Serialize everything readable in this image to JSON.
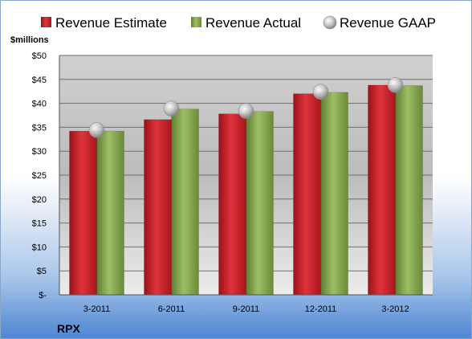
{
  "chart_data": {
    "type": "bar",
    "title": "",
    "ylabel": "$millions",
    "footer": "RPX",
    "categories": [
      "3-2011",
      "6-2011",
      "9-2011",
      "12-2011",
      "3-2012"
    ],
    "series": [
      {
        "name": "Revenue Estimate",
        "kind": "bar",
        "color": "#c8202a",
        "values": [
          34.2,
          36.6,
          37.8,
          42.0,
          43.8
        ]
      },
      {
        "name": "Revenue Actual",
        "kind": "bar",
        "color": "#86a94e",
        "values": [
          34.2,
          38.8,
          38.3,
          42.3,
          43.7
        ]
      },
      {
        "name": "Revenue GAAP",
        "kind": "marker",
        "color": "#b8b8b8",
        "values": [
          34.4,
          38.9,
          38.4,
          42.4,
          43.8
        ]
      }
    ],
    "ylim": [
      0,
      50
    ],
    "yticks": [
      0,
      5,
      10,
      15,
      20,
      25,
      30,
      35,
      40,
      45,
      50
    ],
    "ytick_labels": [
      "$-",
      "$5",
      "$10",
      "$15",
      "$20",
      "$25",
      "$30",
      "$35",
      "$40",
      "$45",
      "$50"
    ],
    "grid": true,
    "legend_position": "top"
  }
}
